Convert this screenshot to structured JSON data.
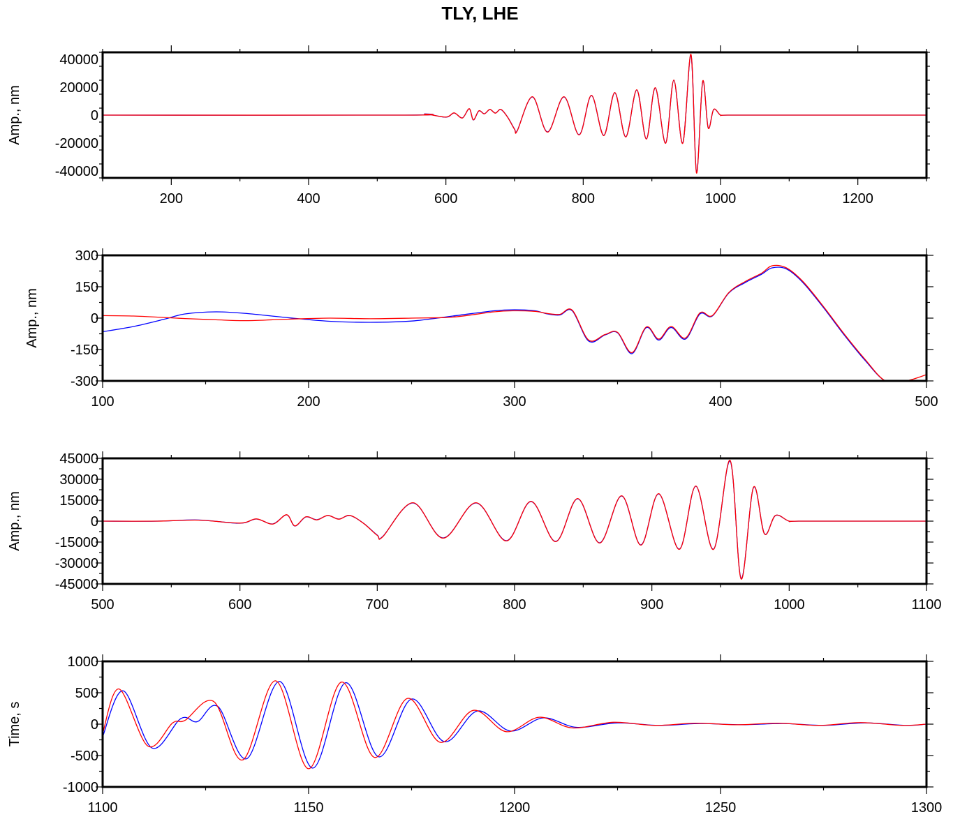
{
  "title": "TLY, LHE",
  "colors": {
    "blue": "#0000ff",
    "red": "#ff0000",
    "frame": "#000000"
  },
  "chart_data": [
    {
      "type": "line",
      "xlim": [
        100,
        1300
      ],
      "ylim": [
        -45000,
        45000
      ],
      "ylabel": "Amp., nm",
      "xticks": [
        200,
        400,
        600,
        800,
        1000,
        1200
      ],
      "yticks": [
        -40000,
        -20000,
        0,
        20000,
        40000
      ],
      "series": [
        {
          "color": "blue",
          "x": [
            100,
            540,
            570,
            600,
            612,
            624,
            634,
            640,
            648,
            656,
            664,
            672,
            680,
            690,
            700,
            704,
            726,
            748,
            772,
            794,
            812,
            830,
            846,
            862,
            878,
            892,
            905,
            920,
            932,
            945,
            957,
            965,
            974,
            982,
            990,
            1000,
            1010,
            1100,
            1200,
            1300
          ],
          "y": [
            0,
            0,
            800,
            -1500,
            1500,
            -2000,
            4500,
            -3500,
            3000,
            1000,
            4000,
            1500,
            4000,
            -1500,
            -10000,
            -11000,
            13000,
            -12000,
            13000,
            -14000,
            14000,
            -14500,
            16000,
            -15500,
            18000,
            -17000,
            19500,
            -20000,
            25000,
            -20000,
            43000,
            -41000,
            24000,
            -9000,
            4000,
            0,
            0,
            0,
            0,
            0
          ]
        },
        {
          "color": "red",
          "x": [
            100,
            540,
            570,
            600,
            612,
            624,
            634,
            640,
            648,
            656,
            664,
            672,
            680,
            690,
            700,
            704,
            726,
            748,
            772,
            794,
            812,
            830,
            846,
            862,
            878,
            892,
            905,
            920,
            932,
            945,
            957,
            965,
            974,
            982,
            990,
            1000,
            1010,
            1100,
            1200,
            1300
          ],
          "y": [
            0,
            0,
            700,
            -1400,
            1600,
            -2100,
            4600,
            -3400,
            3100,
            900,
            4100,
            1400,
            4100,
            -1600,
            -10200,
            -11200,
            13200,
            -12200,
            13200,
            -14200,
            14200,
            -14700,
            16200,
            -15700,
            18200,
            -17200,
            19700,
            -20200,
            25200,
            -20200,
            43500,
            -41500,
            24300,
            -9200,
            4100,
            0,
            0,
            0,
            0,
            0
          ]
        }
      ]
    },
    {
      "type": "line",
      "xlim": [
        100,
        500
      ],
      "ylim": [
        -300,
        300
      ],
      "ylabel": "Amp., nm",
      "xticks": [
        100,
        200,
        300,
        400,
        500
      ],
      "yticks": [
        -300,
        -150,
        0,
        150,
        300
      ],
      "series": [
        {
          "color": "blue",
          "x": [
            100,
            115,
            130,
            140,
            155,
            170,
            190,
            210,
            230,
            250,
            270,
            290,
            300,
            310,
            316,
            322,
            328,
            336,
            344,
            350,
            357,
            364,
            370,
            376,
            383,
            390,
            396,
            404,
            412,
            420,
            425,
            432,
            440,
            450,
            460,
            470,
            480,
            490,
            500
          ],
          "y": [
            -65,
            -40,
            -5,
            20,
            30,
            22,
            2,
            -15,
            -20,
            -14,
            10,
            35,
            40,
            35,
            20,
            15,
            35,
            -110,
            -80,
            -70,
            -170,
            -45,
            -105,
            -45,
            -100,
            20,
            10,
            120,
            170,
            210,
            240,
            235,
            170,
            50,
            -80,
            -200,
            -300,
            -300,
            -300
          ]
        },
        {
          "color": "red",
          "x": [
            100,
            115,
            130,
            140,
            155,
            170,
            190,
            210,
            230,
            250,
            270,
            290,
            300,
            310,
            316,
            322,
            328,
            336,
            344,
            350,
            357,
            364,
            370,
            376,
            383,
            390,
            396,
            404,
            412,
            420,
            425,
            432,
            440,
            450,
            460,
            470,
            480,
            490,
            500
          ],
          "y": [
            12,
            10,
            3,
            -2,
            -8,
            -12,
            -5,
            0,
            -3,
            0,
            5,
            30,
            35,
            32,
            22,
            18,
            38,
            -105,
            -78,
            -68,
            -165,
            -42,
            -100,
            -40,
            -95,
            25,
            12,
            122,
            175,
            215,
            250,
            240,
            175,
            55,
            -75,
            -195,
            -300,
            -300,
            -270
          ]
        }
      ]
    },
    {
      "type": "line",
      "xlim": [
        500,
        1100
      ],
      "ylim": [
        -45000,
        45000
      ],
      "ylabel": "Amp., nm",
      "xticks": [
        500,
        600,
        700,
        800,
        900,
        1000,
        1100
      ],
      "yticks": [
        -45000,
        -30000,
        -15000,
        0,
        15000,
        30000,
        45000
      ],
      "series": [
        {
          "color": "blue",
          "x": [
            500,
            540,
            570,
            600,
            612,
            624,
            634,
            640,
            648,
            656,
            664,
            672,
            680,
            690,
            700,
            704,
            726,
            748,
            772,
            794,
            812,
            830,
            846,
            862,
            878,
            892,
            905,
            920,
            932,
            945,
            957,
            965,
            974,
            982,
            990,
            1000,
            1010,
            1100
          ],
          "y": [
            0,
            0,
            800,
            -1500,
            1500,
            -2000,
            4500,
            -3500,
            3000,
            1000,
            4000,
            1500,
            4000,
            -1500,
            -10000,
            -11000,
            13000,
            -12000,
            13000,
            -14000,
            14000,
            -14500,
            16000,
            -15500,
            18000,
            -17000,
            19500,
            -20000,
            25000,
            -20000,
            43000,
            -41000,
            24000,
            -9000,
            4000,
            0,
            0,
            0
          ]
        },
        {
          "color": "red",
          "x": [
            500,
            540,
            570,
            600,
            612,
            624,
            634,
            640,
            648,
            656,
            664,
            672,
            680,
            690,
            700,
            704,
            726,
            748,
            772,
            794,
            812,
            830,
            846,
            862,
            878,
            892,
            905,
            920,
            932,
            945,
            957,
            965,
            974,
            982,
            990,
            1000,
            1010,
            1100
          ],
          "y": [
            0,
            0,
            700,
            -1400,
            1600,
            -2100,
            4600,
            -3400,
            3100,
            900,
            4100,
            1400,
            4100,
            -1600,
            -10200,
            -11200,
            13200,
            -12200,
            13200,
            -14200,
            14200,
            -14700,
            16200,
            -15700,
            18200,
            -17200,
            19700,
            -20200,
            25200,
            -20200,
            43500,
            -41500,
            24300,
            -9200,
            4100,
            0,
            0,
            0
          ]
        }
      ]
    },
    {
      "type": "line",
      "xlim": [
        1100,
        1300
      ],
      "ylim": [
        -1000,
        1000
      ],
      "ylabel": "Time, s",
      "xticks": [
        1100,
        1150,
        1200,
        1250,
        1300
      ],
      "yticks": [
        -1000,
        -500,
        0,
        500,
        1000
      ],
      "series": [
        {
          "color": "blue",
          "x": [
            1100,
            1105,
            1112,
            1119,
            1123,
            1128,
            1135,
            1143,
            1151,
            1159,
            1167,
            1175,
            1183,
            1191,
            1199,
            1207,
            1215,
            1225,
            1235,
            1245,
            1255,
            1265,
            1275,
            1285,
            1295,
            1300
          ],
          "y": [
            -200,
            530,
            -380,
            90,
            40,
            280,
            -550,
            680,
            -700,
            660,
            -520,
            400,
            -280,
            210,
            -110,
            100,
            -50,
            20,
            -20,
            10,
            -10,
            10,
            -20,
            20,
            -20,
            0
          ]
        },
        {
          "color": "red",
          "x": [
            1100,
            1104,
            1111,
            1117,
            1120,
            1127,
            1134,
            1142,
            1150,
            1158,
            1166,
            1174,
            1182,
            1190,
            1198,
            1206,
            1214,
            1224,
            1234,
            1244,
            1254,
            1264,
            1274,
            1284,
            1294,
            1300
          ],
          "y": [
            -150,
            560,
            -350,
            20,
            60,
            360,
            -570,
            690,
            -710,
            670,
            -530,
            410,
            -290,
            220,
            -120,
            110,
            -60,
            30,
            -20,
            15,
            -10,
            15,
            -20,
            25,
            -20,
            0
          ]
        }
      ]
    }
  ]
}
